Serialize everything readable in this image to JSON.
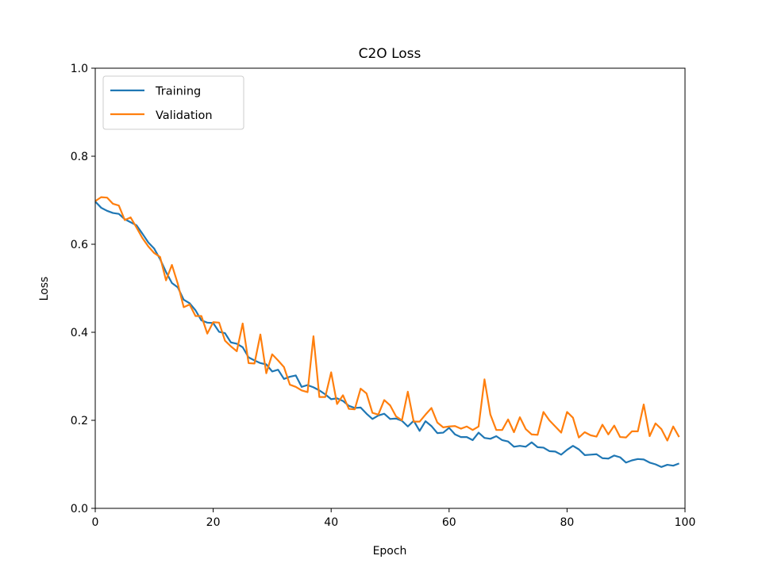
{
  "chart_data": {
    "type": "line",
    "title": "C2O Loss",
    "xlabel": "Epoch",
    "ylabel": "Loss",
    "xlim": [
      0,
      100
    ],
    "ylim": [
      0,
      1
    ],
    "xticks": [
      "0",
      "20",
      "40",
      "60",
      "80",
      "100"
    ],
    "yticks": [
      "0.0",
      "0.2",
      "0.4",
      "0.6",
      "0.8",
      "1.0"
    ],
    "grid": false,
    "legend": "upper left",
    "x": [
      0,
      1,
      2,
      3,
      4,
      5,
      6,
      7,
      8,
      9,
      10,
      11,
      12,
      13,
      14,
      15,
      16,
      17,
      18,
      19,
      20,
      21,
      22,
      23,
      24,
      25,
      26,
      27,
      28,
      29,
      30,
      31,
      32,
      33,
      34,
      35,
      36,
      37,
      38,
      39,
      40,
      41,
      42,
      43,
      44,
      45,
      46,
      47,
      48,
      49,
      50,
      51,
      52,
      53,
      54,
      55,
      56,
      57,
      58,
      59,
      60,
      61,
      62,
      63,
      64,
      65,
      66,
      67,
      68,
      69,
      70,
      71,
      72,
      73,
      74,
      75,
      76,
      77,
      78,
      79,
      80,
      81,
      82,
      83,
      84,
      85,
      86,
      87,
      88,
      89,
      90,
      91,
      92,
      93,
      94,
      95,
      96,
      97,
      98,
      99
    ],
    "series": [
      {
        "name": "Training",
        "color": "#1f77b4",
        "values": [
          0.697,
          0.683,
          0.676,
          0.671,
          0.669,
          0.657,
          0.65,
          0.643,
          0.624,
          0.604,
          0.59,
          0.566,
          0.537,
          0.512,
          0.502,
          0.474,
          0.466,
          0.45,
          0.427,
          0.422,
          0.421,
          0.401,
          0.398,
          0.377,
          0.374,
          0.366,
          0.343,
          0.336,
          0.33,
          0.327,
          0.311,
          0.315,
          0.294,
          0.299,
          0.302,
          0.276,
          0.28,
          0.275,
          0.268,
          0.259,
          0.248,
          0.25,
          0.244,
          0.233,
          0.228,
          0.229,
          0.215,
          0.203,
          0.211,
          0.215,
          0.203,
          0.204,
          0.199,
          0.186,
          0.199,
          0.176,
          0.198,
          0.187,
          0.171,
          0.172,
          0.183,
          0.168,
          0.162,
          0.162,
          0.155,
          0.172,
          0.16,
          0.158,
          0.164,
          0.155,
          0.152,
          0.14,
          0.142,
          0.14,
          0.15,
          0.139,
          0.138,
          0.13,
          0.129,
          0.122,
          0.133,
          0.142,
          0.134,
          0.121,
          0.122,
          0.123,
          0.114,
          0.113,
          0.12,
          0.116,
          0.104,
          0.109,
          0.112,
          0.111,
          0.104,
          0.1,
          0.094,
          0.099,
          0.097,
          0.102
        ]
      },
      {
        "name": "Validation",
        "color": "#ff7f0e",
        "values": [
          0.698,
          0.707,
          0.706,
          0.692,
          0.688,
          0.655,
          0.661,
          0.638,
          0.614,
          0.595,
          0.58,
          0.571,
          0.518,
          0.553,
          0.51,
          0.457,
          0.463,
          0.437,
          0.437,
          0.397,
          0.423,
          0.422,
          0.381,
          0.368,
          0.357,
          0.42,
          0.33,
          0.329,
          0.395,
          0.307,
          0.35,
          0.336,
          0.321,
          0.281,
          0.276,
          0.268,
          0.264,
          0.391,
          0.253,
          0.253,
          0.309,
          0.237,
          0.257,
          0.226,
          0.225,
          0.272,
          0.261,
          0.217,
          0.213,
          0.246,
          0.234,
          0.209,
          0.2,
          0.265,
          0.197,
          0.197,
          0.213,
          0.228,
          0.195,
          0.184,
          0.186,
          0.187,
          0.181,
          0.186,
          0.178,
          0.186,
          0.293,
          0.213,
          0.178,
          0.178,
          0.202,
          0.173,
          0.207,
          0.18,
          0.168,
          0.167,
          0.219,
          0.2,
          0.186,
          0.172,
          0.219,
          0.206,
          0.161,
          0.173,
          0.166,
          0.163,
          0.19,
          0.168,
          0.188,
          0.162,
          0.161,
          0.175,
          0.175,
          0.236,
          0.164,
          0.193,
          0.18,
          0.154,
          0.186,
          0.162
        ]
      }
    ]
  }
}
